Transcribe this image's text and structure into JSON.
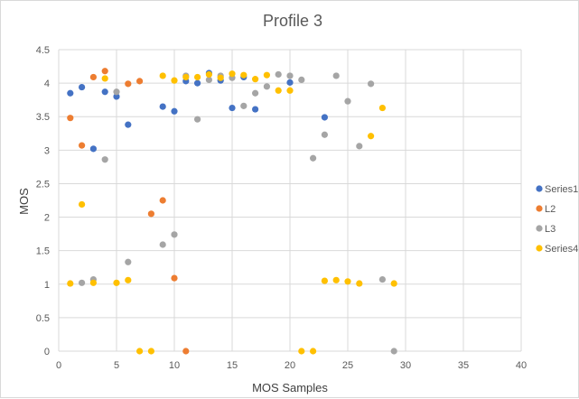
{
  "chart_data": {
    "type": "scatter",
    "title": "Profile 3",
    "xlabel": "MOS Samples",
    "ylabel": "MOS",
    "xlim": [
      0,
      40
    ],
    "ylim": [
      0,
      4.5
    ],
    "xticks": [
      "0",
      "5",
      "10",
      "15",
      "20",
      "25",
      "30",
      "35",
      "40"
    ],
    "yticks": [
      "0",
      "0.5",
      "1",
      "1.5",
      "2",
      "2.5",
      "3",
      "3.5",
      "4",
      "4.5"
    ],
    "grid": true,
    "legend_position": "right",
    "series": [
      {
        "name": "Series1",
        "color": "#4472c4",
        "points": [
          [
            1,
            3.85
          ],
          [
            2,
            3.94
          ],
          [
            3,
            3.02
          ],
          [
            4,
            3.87
          ],
          [
            5,
            3.8
          ],
          [
            6,
            3.38
          ],
          [
            9,
            3.65
          ],
          [
            10,
            3.58
          ],
          [
            11,
            4.03
          ],
          [
            12,
            4.0
          ],
          [
            13,
            4.15
          ],
          [
            14,
            4.04
          ],
          [
            15,
            3.63
          ],
          [
            16,
            4.09
          ],
          [
            17,
            3.61
          ],
          [
            20,
            4.01
          ],
          [
            23,
            3.49
          ]
        ]
      },
      {
        "name": "L2",
        "color": "#ed7d31",
        "points": [
          [
            1,
            3.48
          ],
          [
            2,
            3.07
          ],
          [
            3,
            4.09
          ],
          [
            4,
            4.18
          ],
          [
            6,
            3.99
          ],
          [
            7,
            4.03
          ],
          [
            8,
            2.05
          ],
          [
            9,
            2.25
          ],
          [
            10,
            1.09
          ],
          [
            11,
            0.0
          ]
        ]
      },
      {
        "name": "L3",
        "color": "#a5a5a5",
        "points": [
          [
            2,
            1.02
          ],
          [
            3,
            1.07
          ],
          [
            4,
            2.86
          ],
          [
            5,
            3.87
          ],
          [
            6,
            1.33
          ],
          [
            9,
            1.59
          ],
          [
            10,
            1.74
          ],
          [
            11,
            4.11
          ],
          [
            12,
            3.46
          ],
          [
            13,
            4.05
          ],
          [
            14,
            4.11
          ],
          [
            15,
            4.08
          ],
          [
            16,
            3.66
          ],
          [
            17,
            3.85
          ],
          [
            18,
            3.95
          ],
          [
            19,
            4.13
          ],
          [
            20,
            4.11
          ],
          [
            21,
            4.05
          ],
          [
            22,
            2.88
          ],
          [
            23,
            3.23
          ],
          [
            24,
            4.11
          ],
          [
            25,
            3.73
          ],
          [
            26,
            3.06
          ],
          [
            27,
            3.99
          ],
          [
            28,
            1.07
          ],
          [
            29,
            0.0
          ]
        ]
      },
      {
        "name": "Series4",
        "color": "#ffc000",
        "points": [
          [
            1,
            1.01
          ],
          [
            2,
            2.19
          ],
          [
            3,
            1.02
          ],
          [
            4,
            4.07
          ],
          [
            5,
            1.02
          ],
          [
            6,
            1.06
          ],
          [
            7,
            0.0
          ],
          [
            8,
            0.0
          ],
          [
            9,
            4.11
          ],
          [
            10,
            4.04
          ],
          [
            11,
            4.09
          ],
          [
            12,
            4.09
          ],
          [
            13,
            4.13
          ],
          [
            14,
            4.08
          ],
          [
            15,
            4.14
          ],
          [
            16,
            4.12
          ],
          [
            17,
            4.06
          ],
          [
            18,
            4.12
          ],
          [
            19,
            3.89
          ],
          [
            20,
            3.89
          ],
          [
            21,
            0.0
          ],
          [
            22,
            0.0
          ],
          [
            23,
            1.05
          ],
          [
            24,
            1.06
          ],
          [
            25,
            1.04
          ],
          [
            26,
            1.01
          ],
          [
            27,
            3.21
          ],
          [
            28,
            3.63
          ],
          [
            29,
            1.01
          ]
        ]
      }
    ]
  }
}
